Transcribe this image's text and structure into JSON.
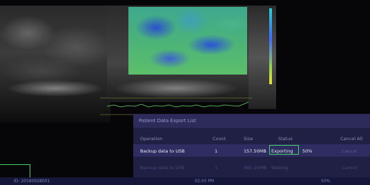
{
  "dialog": {
    "title": "Patient Data Export List",
    "columns": [
      "Operation",
      "Count",
      "Size",
      "Status",
      "Cancel All"
    ],
    "rows": [
      {
        "operation": "Backup data to USB",
        "count": "1",
        "size": "157.50MB",
        "status": "Exporting",
        "progress": "50%",
        "action": "Cancel"
      },
      {
        "operation": "Backup data to USB",
        "count": "1",
        "size": "885.25MB",
        "status": "Waiting",
        "action": "Cancel"
      }
    ]
  },
  "status_bar": {
    "id": "ID: 20180928001",
    "time": "02:05 PM",
    "progress": "50%"
  }
}
